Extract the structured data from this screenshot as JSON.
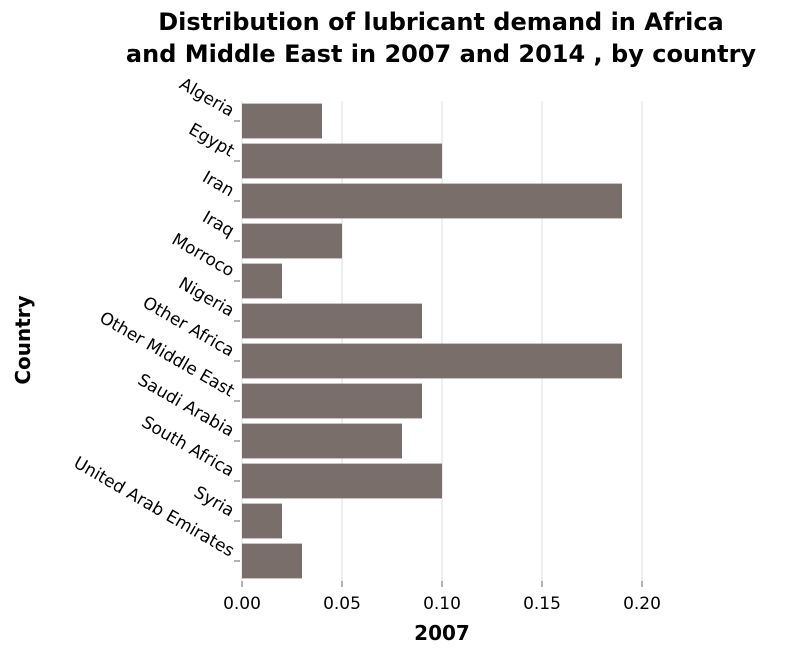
{
  "chart_data": {
    "type": "bar",
    "orientation": "horizontal",
    "title_lines": [
      "Distribution of lubricant demand in Africa",
      "and Middle East in 2007 and 2014 , by country"
    ],
    "xlabel": "2007",
    "ylabel": "Country",
    "xlim": [
      0,
      0.2
    ],
    "x_ticks": [
      "0.00",
      "0.05",
      "0.10",
      "0.15",
      "0.20"
    ],
    "grid": true,
    "bar_color": "#7a6e6b",
    "categories": [
      "Algeria",
      "Egypt",
      "Iran",
      "Iraq",
      "Morroco",
      "Nigeria",
      "Other Africa",
      "Other Middle East",
      "Saudi Arabia",
      "South Africa",
      "Syria",
      "United Arab Emirates"
    ],
    "values": [
      0.04,
      0.1,
      0.19,
      0.05,
      0.02,
      0.09,
      0.19,
      0.09,
      0.08,
      0.1,
      0.02,
      0.03
    ]
  }
}
